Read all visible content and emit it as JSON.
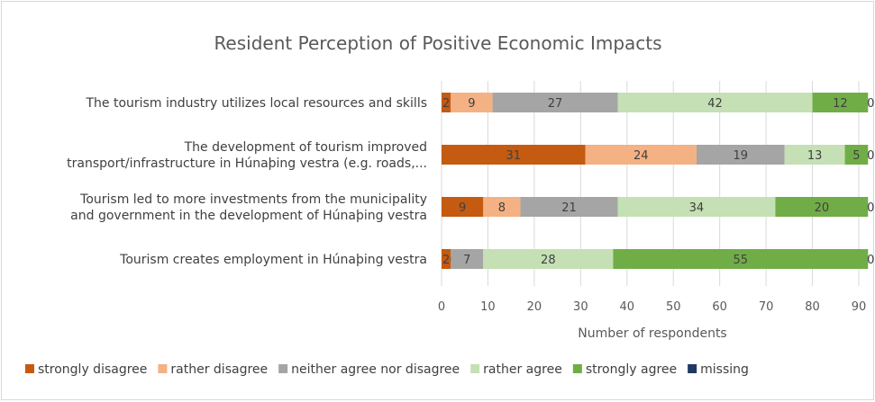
{
  "chart_data": {
    "type": "bar",
    "orientation": "horizontal",
    "stacked": true,
    "title": "Resident Perception of Positive Economic Impacts",
    "xlabel": "Number of respondents",
    "ylabel": "",
    "xlim": [
      0,
      90
    ],
    "xticks": [
      0,
      10,
      20,
      30,
      40,
      50,
      60,
      70,
      80,
      90
    ],
    "grid": true,
    "legend_position": "bottom",
    "categories": [
      [
        "The tourism industry utilizes local resources and skills"
      ],
      [
        "The development of tourism improved",
        "transport/infrastructure in Húnaþing vestra (e.g. roads,..."
      ],
      [
        "Tourism led to more investments from the municipality",
        "and government in the development of Húnaþing vestra"
      ],
      [
        "Tourism creates employment in Húnaþing vestra"
      ]
    ],
    "series": [
      {
        "name": "strongly disagree",
        "color": "#c55a11",
        "values": [
          2,
          31,
          9,
          2
        ]
      },
      {
        "name": "rather disagree",
        "color": "#f4b183",
        "values": [
          9,
          24,
          8,
          0
        ]
      },
      {
        "name": "neither agree nor disagree",
        "color": "#a5a5a5",
        "values": [
          27,
          19,
          21,
          7
        ]
      },
      {
        "name": "rather agree",
        "color": "#c5e0b4",
        "values": [
          42,
          13,
          34,
          28
        ]
      },
      {
        "name": "strongly agree",
        "color": "#70ad47",
        "values": [
          12,
          5,
          20,
          55
        ]
      },
      {
        "name": "missing",
        "color": "#203864",
        "values": [
          0,
          0,
          0,
          0
        ]
      }
    ]
  }
}
